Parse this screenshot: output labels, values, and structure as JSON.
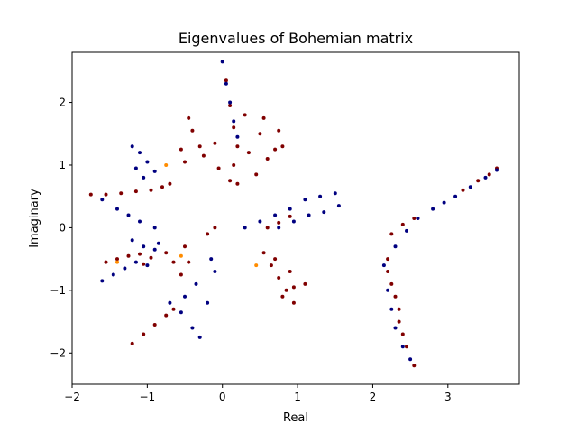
{
  "chart_data": {
    "type": "scatter",
    "title": "Eigenvalues of Bohemian matrix",
    "xlabel": "Real",
    "ylabel": "Imaginary",
    "xlim": [
      -2.0,
      3.95
    ],
    "ylim": [
      -2.5,
      2.8
    ],
    "x_ticks": [
      -2,
      -1,
      0,
      1,
      2,
      3
    ],
    "x_tick_labels": [
      "−2",
      "−1",
      "0",
      "1",
      "2",
      "3"
    ],
    "y_ticks": [
      -2,
      -1,
      0,
      1,
      2
    ],
    "y_tick_labels": [
      "−2",
      "−1",
      "0",
      "1",
      "2"
    ],
    "grid": false,
    "legend": "none",
    "colors": {
      "dark_red": "#800000",
      "navy": "#000080",
      "orange": "#ff8c00"
    },
    "series": [
      {
        "color": "#800000",
        "points": [
          [
            0.05,
            2.35
          ],
          [
            0.1,
            1.95
          ],
          [
            0.15,
            1.6
          ],
          [
            0.2,
            1.3
          ],
          [
            0.15,
            1.0
          ],
          [
            0.1,
            0.75
          ],
          [
            -0.45,
            1.75
          ],
          [
            -0.4,
            1.55
          ],
          [
            -0.55,
            1.25
          ],
          [
            -0.5,
            1.05
          ],
          [
            -0.25,
            1.15
          ],
          [
            -0.1,
            1.35
          ],
          [
            0.3,
            1.8
          ],
          [
            0.55,
            1.75
          ],
          [
            0.75,
            1.55
          ],
          [
            0.8,
            1.3
          ],
          [
            0.6,
            1.1
          ],
          [
            0.45,
            0.85
          ],
          [
            0.35,
            1.2
          ],
          [
            0.2,
            0.7
          ],
          [
            0.5,
            1.5
          ],
          [
            0.7,
            1.25
          ],
          [
            -0.05,
            0.95
          ],
          [
            -0.3,
            1.3
          ],
          [
            -1.75,
            0.53
          ],
          [
            -1.55,
            0.53
          ],
          [
            -1.35,
            0.55
          ],
          [
            -1.15,
            0.58
          ],
          [
            -0.95,
            0.6
          ],
          [
            -0.8,
            0.65
          ],
          [
            -0.7,
            0.7
          ],
          [
            -1.55,
            -0.55
          ],
          [
            -1.4,
            -0.5
          ],
          [
            -1.25,
            -0.45
          ],
          [
            -1.1,
            -0.42
          ],
          [
            -0.95,
            -0.48
          ],
          [
            -1.05,
            -0.58
          ],
          [
            -0.75,
            -0.4
          ],
          [
            -0.65,
            -0.55
          ],
          [
            -0.55,
            -0.75
          ],
          [
            -0.5,
            -0.3
          ],
          [
            -0.45,
            -0.55
          ],
          [
            -1.2,
            -1.85
          ],
          [
            -1.05,
            -1.7
          ],
          [
            -0.9,
            -1.55
          ],
          [
            -0.75,
            -1.4
          ],
          [
            -0.65,
            -1.3
          ],
          [
            0.55,
            -0.4
          ],
          [
            0.65,
            -0.6
          ],
          [
            0.75,
            -0.8
          ],
          [
            0.85,
            -1.0
          ],
          [
            0.95,
            -1.2
          ],
          [
            0.8,
            -1.1
          ],
          [
            0.7,
            -0.5
          ],
          [
            0.9,
            -0.7
          ],
          [
            1.1,
            -0.9
          ],
          [
            0.95,
            -0.95
          ],
          [
            0.6,
            0.0
          ],
          [
            0.75,
            0.08
          ],
          [
            0.9,
            0.18
          ],
          [
            2.2,
            -0.7
          ],
          [
            2.3,
            -1.1
          ],
          [
            2.35,
            -1.5
          ],
          [
            2.45,
            -1.9
          ],
          [
            2.55,
            -2.2
          ],
          [
            2.25,
            -0.9
          ],
          [
            2.35,
            -1.3
          ],
          [
            2.4,
            -1.7
          ],
          [
            2.2,
            -0.5
          ],
          [
            2.25,
            -0.1
          ],
          [
            2.4,
            0.05
          ],
          [
            2.55,
            0.15
          ],
          [
            3.2,
            0.6
          ],
          [
            3.4,
            0.75
          ],
          [
            3.55,
            0.85
          ],
          [
            3.65,
            0.95
          ],
          [
            -0.1,
            0.0
          ],
          [
            -0.2,
            -0.1
          ]
        ]
      },
      {
        "color": "#000080",
        "points": [
          [
            0.0,
            2.65
          ],
          [
            0.05,
            2.3
          ],
          [
            0.1,
            2.0
          ],
          [
            0.15,
            1.7
          ],
          [
            0.2,
            1.45
          ],
          [
            -1.2,
            1.3
          ],
          [
            -1.1,
            1.2
          ],
          [
            -1.0,
            1.05
          ],
          [
            -0.9,
            0.9
          ],
          [
            -1.15,
            0.95
          ],
          [
            -1.05,
            0.8
          ],
          [
            -1.6,
            0.45
          ],
          [
            -1.4,
            0.3
          ],
          [
            -1.25,
            0.2
          ],
          [
            -1.1,
            0.1
          ],
          [
            -0.9,
            -0.0
          ],
          [
            -1.2,
            -0.2
          ],
          [
            -1.05,
            -0.3
          ],
          [
            -0.9,
            -0.35
          ],
          [
            -0.85,
            -0.25
          ],
          [
            -1.6,
            -0.85
          ],
          [
            -1.45,
            -0.75
          ],
          [
            -1.3,
            -0.65
          ],
          [
            -1.15,
            -0.55
          ],
          [
            -1.0,
            -0.6
          ],
          [
            -0.7,
            -1.2
          ],
          [
            -0.55,
            -1.35
          ],
          [
            -0.4,
            -1.6
          ],
          [
            -0.3,
            -1.75
          ],
          [
            -0.5,
            -1.1
          ],
          [
            -0.35,
            -0.9
          ],
          [
            -0.2,
            -1.2
          ],
          [
            -0.1,
            -0.7
          ],
          [
            -0.15,
            -0.5
          ],
          [
            0.3,
            0.0
          ],
          [
            0.5,
            0.1
          ],
          [
            0.7,
            0.2
          ],
          [
            0.9,
            0.3
          ],
          [
            1.1,
            0.45
          ],
          [
            1.3,
            0.5
          ],
          [
            1.5,
            0.55
          ],
          [
            0.75,
            0.0
          ],
          [
            0.95,
            0.1
          ],
          [
            1.15,
            0.2
          ],
          [
            1.35,
            0.25
          ],
          [
            1.55,
            0.35
          ],
          [
            2.15,
            -0.6
          ],
          [
            2.2,
            -1.0
          ],
          [
            2.25,
            -1.3
          ],
          [
            2.3,
            -1.6
          ],
          [
            2.4,
            -1.9
          ],
          [
            2.5,
            -2.1
          ],
          [
            2.3,
            -0.3
          ],
          [
            2.45,
            -0.05
          ],
          [
            2.6,
            0.15
          ],
          [
            2.8,
            0.3
          ],
          [
            2.95,
            0.4
          ],
          [
            3.1,
            0.5
          ],
          [
            3.3,
            0.65
          ],
          [
            3.5,
            0.8
          ],
          [
            3.65,
            0.92
          ]
        ]
      },
      {
        "color": "#ff8c00",
        "points": [
          [
            -0.55,
            -0.45
          ],
          [
            -1.4,
            -0.55
          ],
          [
            -0.75,
            1.0
          ],
          [
            0.45,
            -0.6
          ]
        ]
      }
    ]
  }
}
